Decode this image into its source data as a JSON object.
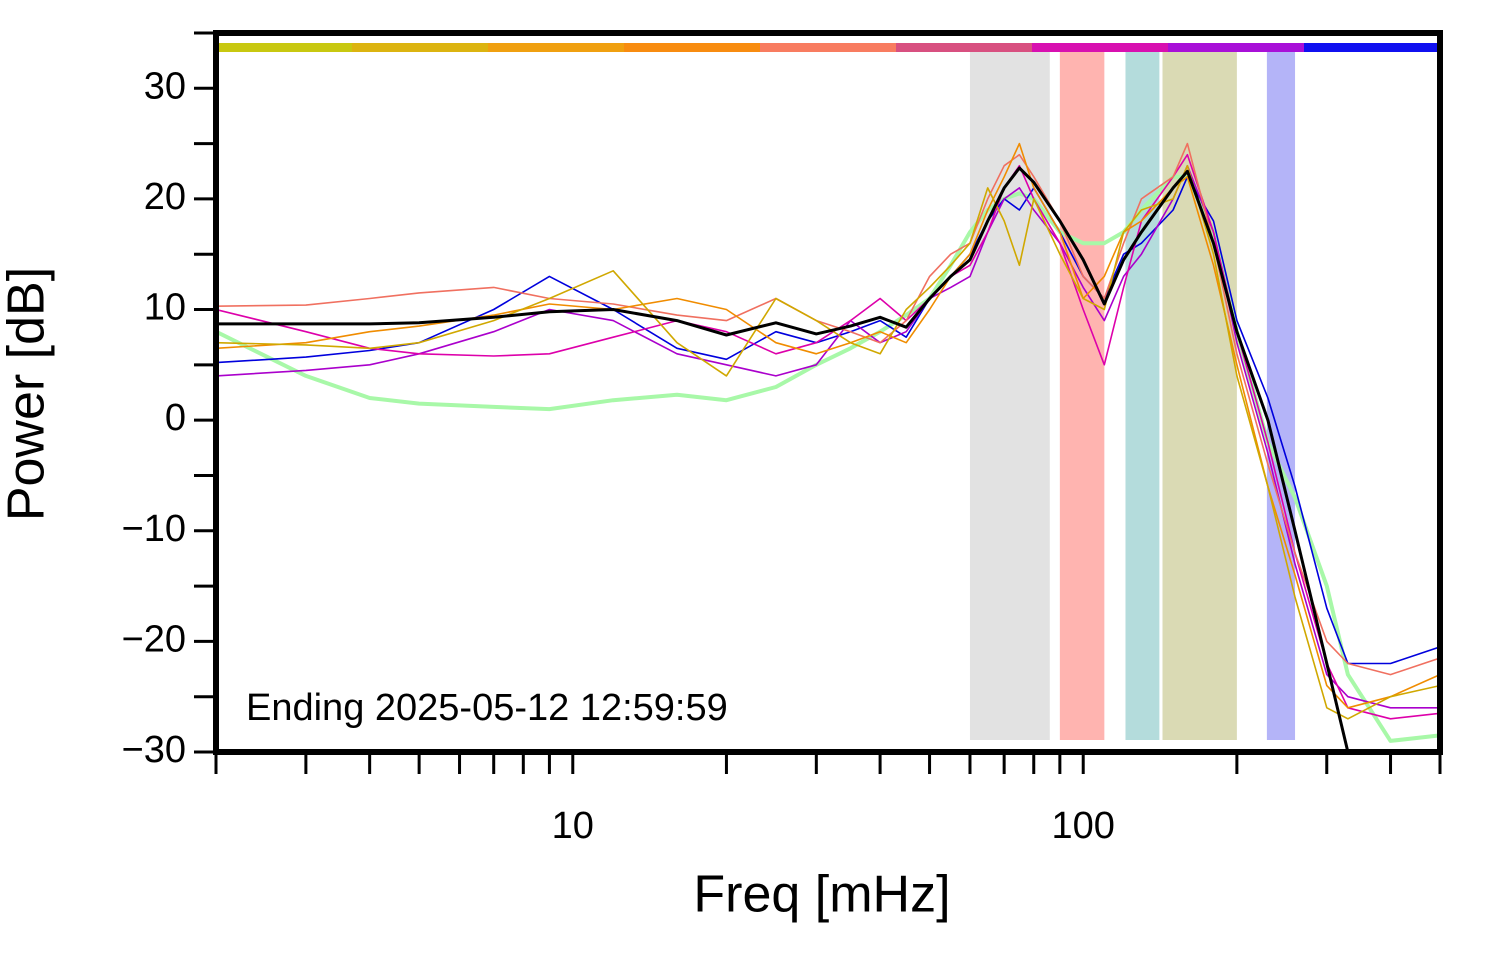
{
  "chart_data": {
    "type": "line",
    "xlabel": "Freq [mHz]",
    "ylabel": "Power [dB]",
    "annotation": "Ending 2025-05-12 12:59:59",
    "log_x": true,
    "xlim": [
      2,
      500
    ],
    "ylim": [
      -30,
      35
    ],
    "xticks": [
      10,
      100
    ],
    "xminor": [
      2,
      3,
      4,
      5,
      6,
      7,
      8,
      9,
      20,
      30,
      40,
      50,
      60,
      70,
      80,
      90,
      200,
      300,
      400,
      500
    ],
    "yticks": [
      {
        "value": -30,
        "label": "−30"
      },
      {
        "value": -20,
        "label": "−20"
      },
      {
        "value": -10,
        "label": "−10"
      },
      0,
      10,
      20,
      30
    ],
    "yminor": [
      -25,
      -15,
      -5,
      5,
      15,
      25,
      35
    ],
    "top_bar_colors": [
      "#c8c810",
      "#dcb410",
      "#f0a010",
      "#f88c10",
      "#f87c60",
      "#d85080",
      "#d810b0",
      "#a810d8",
      "#1010f0"
    ],
    "bands": [
      {
        "range": [
          60,
          86
        ],
        "color": "#e2e2e2"
      },
      {
        "range": [
          90,
          110
        ],
        "color": "#ffb4b0"
      },
      {
        "range": [
          121,
          141
        ],
        "color": "#b4dcdc"
      },
      {
        "range": [
          143,
          200
        ],
        "color": "#dadab4"
      },
      {
        "range": [
          229,
          260
        ],
        "color": "#b4b4f8"
      }
    ],
    "x": [
      2,
      3,
      4,
      5,
      7,
      9,
      12,
      16,
      20,
      25,
      30,
      35,
      40,
      45,
      50,
      55,
      60,
      65,
      70,
      75,
      80,
      90,
      100,
      110,
      120,
      130,
      150,
      160,
      180,
      200,
      230,
      260,
      300,
      330,
      400,
      500
    ],
    "series": [
      {
        "color": "#a8f8a8",
        "width": 4,
        "values": [
          8,
          4,
          2,
          1.5,
          1.2,
          1,
          1.8,
          2.3,
          1.8,
          3,
          5,
          6.5,
          8,
          9.5,
          11,
          14,
          17,
          19,
          20,
          20.5,
          20,
          17,
          16,
          16,
          17,
          19,
          22,
          22,
          17,
          8,
          -2,
          -7,
          -15,
          -23,
          -29,
          -28.5
        ]
      },
      {
        "color": "#0000dd",
        "width": 1.6,
        "values": [
          5.2,
          5.7,
          6.3,
          7,
          10,
          13,
          10,
          6.5,
          5.5,
          8,
          7,
          8,
          9,
          7.5,
          11,
          13,
          15,
          18,
          20,
          19,
          21,
          17,
          13,
          11,
          15,
          16,
          19,
          22,
          18,
          9,
          2,
          -6,
          -17,
          -22,
          -22,
          -20.5
        ]
      },
      {
        "color": "#aa00cc",
        "width": 1.6,
        "values": [
          4,
          4.5,
          5,
          6,
          8,
          10,
          9,
          6,
          5,
          4,
          5,
          9,
          7,
          8,
          11,
          12,
          13,
          17,
          20,
          21,
          19,
          16,
          12,
          9,
          13,
          15,
          20,
          23,
          17,
          7,
          -3,
          -13,
          -23,
          -25,
          -26,
          -26
        ]
      },
      {
        "color": "#dd00aa",
        "width": 1.6,
        "values": [
          10,
          8,
          6.5,
          6,
          5.8,
          6,
          7.5,
          9,
          8,
          6,
          7,
          9,
          11,
          9,
          11,
          13,
          14,
          17,
          21,
          23,
          20,
          16,
          10,
          5,
          12,
          18,
          22,
          24,
          17,
          8,
          -2,
          -12,
          -22,
          -26,
          -27,
          -26.5
        ]
      },
      {
        "color": "#f07060",
        "width": 1.6,
        "values": [
          10.3,
          10.4,
          11,
          11.5,
          12,
          11,
          10.5,
          9.5,
          9,
          11,
          9,
          8,
          7,
          9,
          13,
          15,
          16,
          20,
          23,
          24,
          22,
          18,
          13,
          11,
          16,
          20,
          22,
          25,
          16,
          6,
          -4,
          -12,
          -20,
          -22,
          -23,
          -21.5
        ]
      },
      {
        "color": "#f08c00",
        "width": 1.6,
        "values": [
          6.5,
          7,
          8,
          8.5,
          9.5,
          10.5,
          10,
          11,
          10,
          7,
          6,
          7,
          8,
          7,
          10,
          13,
          15,
          19,
          22,
          25,
          21,
          17,
          11,
          13,
          17,
          18,
          21,
          22,
          14,
          5,
          -6,
          -14,
          -24,
          -26,
          -25,
          -23
        ]
      },
      {
        "color": "#d0a800",
        "width": 1.6,
        "values": [
          7,
          6.8,
          6.5,
          7,
          9,
          11,
          13.5,
          7,
          4,
          11,
          9,
          7,
          6,
          10,
          12,
          14,
          16,
          21,
          18,
          14,
          20,
          15,
          11,
          10,
          17,
          19,
          20,
          23,
          15,
          4,
          -6,
          -16,
          -26,
          -27,
          -25,
          -24
        ]
      },
      {
        "color": "#000000",
        "width": 3,
        "values": [
          8.7,
          8.7,
          8.7,
          8.8,
          9.3,
          9.8,
          10,
          9,
          7.7,
          8.8,
          7.8,
          8.5,
          9.3,
          8.4,
          11,
          13,
          14.5,
          18,
          21,
          22.8,
          21.5,
          18,
          14.5,
          10.5,
          14.5,
          17,
          21,
          22.5,
          16,
          8,
          0,
          -10,
          -22,
          -30,
          null,
          null
        ]
      }
    ]
  }
}
